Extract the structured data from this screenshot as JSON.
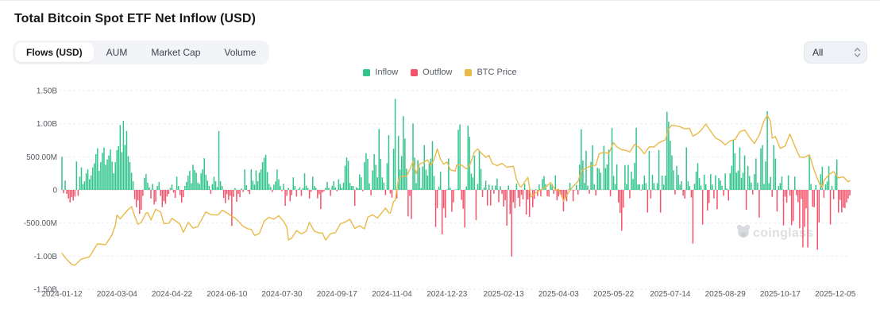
{
  "header": {
    "title": "Total Bitcoin Spot ETF Net Inflow (USD)"
  },
  "tabs": {
    "active": "Flows (USD)",
    "items": [
      {
        "label": "Flows (USD)"
      },
      {
        "label": "AUM"
      },
      {
        "label": "Market Cap"
      },
      {
        "label": "Volume"
      }
    ]
  },
  "range_select": {
    "value": "All"
  },
  "legend": {
    "items": [
      {
        "label": "Inflow",
        "color": "#31c48d"
      },
      {
        "label": "Outflow",
        "color": "#f4536a"
      },
      {
        "label": "BTC Price",
        "color": "#e9ba4a"
      }
    ]
  },
  "watermark": {
    "text": "coinglass"
  },
  "chart_data": {
    "type": "combo",
    "title": "Total Bitcoin Spot ETF Net Inflow (USD)",
    "grid": "horizontal-dashed",
    "legend_position": "top-center",
    "y_axis": {
      "unit": "USD",
      "range_musd": [
        -1500,
        1500
      ],
      "ticks": [
        {
          "label": "1.50B",
          "value_musd": 1500
        },
        {
          "label": "1.00B",
          "value_musd": 1000
        },
        {
          "label": "500.00M",
          "value_musd": 500
        },
        {
          "label": "0",
          "value_musd": 0
        },
        {
          "label": "-500.00M",
          "value_musd": -500
        },
        {
          "label": "-1.00B",
          "value_musd": -1000
        },
        {
          "label": "-1.50B",
          "value_musd": -1500
        }
      ]
    },
    "x_axis": {
      "ticks": [
        {
          "label": "2024-01-12",
          "day": 0
        },
        {
          "label": "2024-03-04",
          "day": 34
        },
        {
          "label": "2024-04-22",
          "day": 68
        },
        {
          "label": "2024-06-10",
          "day": 102
        },
        {
          "label": "2024-07-30",
          "day": 136
        },
        {
          "label": "2024-09-17",
          "day": 170
        },
        {
          "label": "2024-11-04",
          "day": 204
        },
        {
          "label": "2024-12-23",
          "day": 238
        },
        {
          "label": "2025-02-13",
          "day": 273
        },
        {
          "label": "2025-04-03",
          "day": 307
        },
        {
          "label": "2025-05-22",
          "day": 341
        },
        {
          "label": "2025-07-14",
          "day": 376
        },
        {
          "label": "2025-08-29",
          "day": 410
        },
        {
          "label": "2025-10-17",
          "day": 444
        },
        {
          "label": "2025-12-05",
          "day": 478
        }
      ]
    },
    "colors": {
      "inflow": "#31c48d",
      "outflow": "#f4536a",
      "btc_price": "#e9ba4a"
    },
    "bar_series": {
      "name": "Daily Net Flow (Inflow/Outflow)",
      "unit": "USD millions",
      "start_date": "2024-01-12",
      "frequency": "trading_days",
      "values_musd": [
        500,
        -49,
        140,
        -60,
        -130,
        -190,
        -110,
        -160,
        -100,
        430,
        -90,
        200,
        340,
        90,
        130,
        250,
        310,
        160,
        220,
        340,
        400,
        540,
        630,
        290,
        420,
        560,
        640,
        380,
        460,
        520,
        610,
        430,
        250,
        420,
        600,
        660,
        980,
        570,
        1045,
        680,
        890,
        510,
        420,
        260,
        130,
        -140,
        -260,
        -160,
        -360,
        -300,
        -90,
        180,
        240,
        110,
        40,
        -130,
        90,
        -220,
        -180,
        60,
        120,
        -90,
        -260,
        -170,
        -210,
        -100,
        -60,
        30,
        80,
        -40,
        -120,
        200,
        60,
        -80,
        -190,
        -110,
        60,
        120,
        217,
        290,
        100,
        380,
        300,
        260,
        110,
        90,
        250,
        310,
        480,
        230,
        140,
        60,
        -60,
        90,
        200,
        130,
        45,
        890,
        130,
        60,
        -120,
        -200,
        -65,
        -150,
        -90,
        -545,
        -105,
        30,
        -180,
        -60,
        -110,
        20,
        -30,
        310,
        70,
        -20,
        -65,
        310,
        140,
        80,
        295,
        130,
        260,
        310,
        420,
        485,
        530,
        270,
        90,
        44,
        -30,
        80,
        130,
        310,
        160,
        60,
        -20,
        90,
        -240,
        -90,
        30,
        -170,
        -80,
        190,
        60,
        -100,
        10,
        40,
        -90,
        30,
        250,
        65,
        30,
        -130,
        -30,
        200,
        60,
        30,
        -127,
        -65,
        -290,
        -40,
        -20,
        30,
        120,
        30,
        -90,
        60,
        130,
        40,
        -20,
        160,
        90,
        30,
        110,
        365,
        490,
        440,
        105,
        60,
        61,
        -240,
        39,
        25,
        235,
        190,
        -20,
        420,
        555,
        470,
        99,
        -80,
        294,
        540,
        380,
        190,
        920,
        470,
        190,
        110,
        -79,
        402,
        827,
        -55,
        -116,
        622,
        1374,
        -128,
        817,
        310,
        510,
        1114,
        775,
        320,
        -400,
        -91,
        -438,
        1005,
        490,
        103,
        450,
        340,
        30,
        354,
        676,
        308,
        216,
        398,
        475,
        737,
        211,
        -560,
        -277,
        51,
        275,
        -671,
        -277,
        -420,
        8,
        475,
        31,
        -330,
        -188,
        5,
        5,
        908,
        987,
        -150,
        -284,
        -568,
        53,
        969,
        802,
        249,
        188,
        518,
        -457,
        92,
        588,
        318,
        -110,
        37,
        140,
        -235,
        80,
        -235,
        67,
        -56,
        66,
        171,
        -186,
        56,
        -61,
        -251,
        -157,
        -540,
        66,
        -364,
        -1005,
        -188,
        -276,
        94,
        -120,
        -250,
        -74,
        -143,
        94,
        -372,
        -145,
        -409,
        5,
        -263,
        -135,
        13,
        -93,
        83,
        -97,
        165,
        209,
        89,
        -93,
        -102,
        84,
        89,
        -60,
        218,
        -158,
        -100,
        -65,
        -110,
        -324,
        -127,
        -172,
        3,
        107,
        1,
        -170,
        -6,
        76,
        -70,
        381,
        917,
        442,
        108,
        591,
        64,
        -57,
        425,
        675,
        88,
        -85,
        334,
        321,
        260,
        5,
        667,
        329,
        384,
        608,
        -96,
        935,
        211,
        87,
        385,
        -190,
        -346,
        -616,
        -268,
        375,
        87,
        378,
        -128,
        274,
        165,
        408,
        939,
        81,
        86,
        -9,
        83,
        216,
        102,
        -342,
        588,
        -130,
        229,
        102,
        7,
        102,
        602,
        -342,
        217,
        80,
        215,
        1180,
        1030,
        742,
        523,
        297,
        -68,
        363,
        226,
        80,
        131,
        -86,
        -131,
        642,
        130,
        57,
        -115,
        -812,
        91,
        277,
        404,
        178,
        65,
        -523,
        230,
        86,
        -311,
        -197,
        240,
        81,
        -127,
        219,
        -291,
        179,
        143,
        64,
        -87,
        250,
        23,
        -160,
        250,
        364,
        757,
        553,
        260,
        292,
        643,
        183,
        260,
        522,
        -300,
        363,
        211,
        111,
        -70,
        241,
        475,
        109,
        -418,
        627,
        676,
        91,
        429,
        1190,
        102,
        197,
        -104,
        675,
        475,
        -327,
        60,
        103,
        202,
        -536,
        -101,
        -191,
        220,
        -88,
        -532,
        -470,
        202,
        -79,
        -187,
        -578,
        -137,
        -867,
        -558,
        -278,
        -870,
        524,
        90,
        -255,
        -262,
        75,
        -903,
        -492,
        238,
        351,
        -118,
        83,
        129,
        358,
        -523,
        61,
        -140,
        224,
        460,
        -342,
        -150,
        -339,
        -267,
        -274,
        -190,
        -130,
        -85
      ]
    },
    "line_series": {
      "name": "BTC Price",
      "unit": "USD",
      "axis_range_usd": [
        25800,
        139500
      ],
      "points_day_price": [
        [
          0,
          46300
        ],
        [
          3,
          42800
        ],
        [
          6,
          40000
        ],
        [
          8,
          39600
        ],
        [
          12,
          43100
        ],
        [
          17,
          44300
        ],
        [
          22,
          51800
        ],
        [
          27,
          51300
        ],
        [
          31,
          57000
        ],
        [
          33,
          62400
        ],
        [
          34,
          68300
        ],
        [
          36,
          66100
        ],
        [
          38,
          68300
        ],
        [
          41,
          71500
        ],
        [
          43,
          73100
        ],
        [
          45,
          67600
        ],
        [
          47,
          63000
        ],
        [
          49,
          64100
        ],
        [
          52,
          69400
        ],
        [
          53,
          69700
        ],
        [
          55,
          65400
        ],
        [
          58,
          71600
        ],
        [
          61,
          70000
        ],
        [
          63,
          63400
        ],
        [
          66,
          63500
        ],
        [
          68,
          66400
        ],
        [
          73,
          63100
        ],
        [
          75,
          58300
        ],
        [
          78,
          64100
        ],
        [
          81,
          60800
        ],
        [
          84,
          61600
        ],
        [
          86,
          65200
        ],
        [
          89,
          70100
        ],
        [
          92,
          68500
        ],
        [
          96,
          68300
        ],
        [
          97,
          68800
        ],
        [
          99,
          71100
        ],
        [
          102,
          69500
        ],
        [
          104,
          68200
        ],
        [
          107,
          66500
        ],
        [
          109,
          64800
        ],
        [
          112,
          61800
        ],
        [
          115,
          60300
        ],
        [
          117,
          60200
        ],
        [
          119,
          56600
        ],
        [
          122,
          57700
        ],
        [
          125,
          64800
        ],
        [
          128,
          67000
        ],
        [
          131,
          65900
        ],
        [
          134,
          67900
        ],
        [
          137,
          64600
        ],
        [
          139,
          61500
        ],
        [
          140,
          54000
        ],
        [
          142,
          55000
        ],
        [
          145,
          59400
        ],
        [
          148,
          57500
        ],
        [
          151,
          59000
        ],
        [
          153,
          64100
        ],
        [
          156,
          59000
        ],
        [
          159,
          58000
        ],
        [
          161,
          58000
        ],
        [
          163,
          53900
        ],
        [
          166,
          57600
        ],
        [
          169,
          58200
        ],
        [
          172,
          63200
        ],
        [
          175,
          64300
        ],
        [
          178,
          65800
        ],
        [
          181,
          60600
        ],
        [
          184,
          62200
        ],
        [
          187,
          60300
        ],
        [
          189,
          67000
        ],
        [
          192,
          68400
        ],
        [
          195,
          66600
        ],
        [
          198,
          69900
        ],
        [
          200,
          72300
        ],
        [
          202,
          69500
        ],
        [
          203,
          69400
        ],
        [
          205,
          76000
        ],
        [
          206,
          76700
        ],
        [
          208,
          88700
        ],
        [
          210,
          90400
        ],
        [
          213,
          90500
        ],
        [
          215,
          94300
        ],
        [
          217,
          99000
        ],
        [
          219,
          91900
        ],
        [
          221,
          97400
        ],
        [
          224,
          98700
        ],
        [
          226,
          99900
        ],
        [
          228,
          96600
        ],
        [
          230,
          100000
        ],
        [
          232,
          106100
        ],
        [
          234,
          100200
        ],
        [
          236,
          97400
        ],
        [
          238,
          98700
        ],
        [
          240,
          94200
        ],
        [
          243,
          93400
        ],
        [
          244,
          96900
        ],
        [
          247,
          96900
        ],
        [
          250,
          94700
        ],
        [
          252,
          96500
        ],
        [
          255,
          104400
        ],
        [
          257,
          106100
        ],
        [
          259,
          103900
        ],
        [
          262,
          101300
        ],
        [
          264,
          102400
        ],
        [
          266,
          97800
        ],
        [
          269,
          96500
        ],
        [
          272,
          97800
        ],
        [
          275,
          95600
        ],
        [
          279,
          96200
        ],
        [
          281,
          88600
        ],
        [
          283,
          84700
        ],
        [
          284,
          84300
        ],
        [
          286,
          87200
        ],
        [
          288,
          89900
        ],
        [
          290,
          78500
        ],
        [
          293,
          81100
        ],
        [
          296,
          82700
        ],
        [
          299,
          84100
        ],
        [
          302,
          86900
        ],
        [
          305,
          82500
        ],
        [
          307,
          83100
        ],
        [
          309,
          79200
        ],
        [
          310,
          76300
        ],
        [
          312,
          79600
        ],
        [
          315,
          83700
        ],
        [
          319,
          87500
        ],
        [
          321,
          93700
        ],
        [
          324,
          95000
        ],
        [
          327,
          96500
        ],
        [
          330,
          96800
        ],
        [
          332,
          103300
        ],
        [
          335,
          104200
        ],
        [
          338,
          103500
        ],
        [
          341,
          109700
        ],
        [
          343,
          107300
        ],
        [
          346,
          105600
        ],
        [
          348,
          105400
        ],
        [
          351,
          104400
        ],
        [
          354,
          108700
        ],
        [
          357,
          106800
        ],
        [
          360,
          103300
        ],
        [
          363,
          107300
        ],
        [
          366,
          107200
        ],
        [
          369,
          109600
        ],
        [
          373,
          111300
        ],
        [
          375,
          117600
        ],
        [
          377,
          119800
        ],
        [
          379,
          119400
        ],
        [
          382,
          118800
        ],
        [
          385,
          117600
        ],
        [
          388,
          117900
        ],
        [
          390,
          113400
        ],
        [
          393,
          115000
        ],
        [
          395,
          116700
        ],
        [
          398,
          120400
        ],
        [
          401,
          116300
        ],
        [
          404,
          112400
        ],
        [
          407,
          111000
        ],
        [
          410,
          108400
        ],
        [
          413,
          110700
        ],
        [
          416,
          111500
        ],
        [
          419,
          115900
        ],
        [
          422,
          117000
        ],
        [
          425,
          112800
        ],
        [
          428,
          109200
        ],
        [
          431,
          114000
        ],
        [
          434,
          122200
        ],
        [
          436,
          125300
        ],
        [
          438,
          121700
        ],
        [
          439,
          112200
        ],
        [
          441,
          113200
        ],
        [
          444,
          106400
        ],
        [
          447,
          107800
        ],
        [
          450,
          114600
        ],
        [
          453,
          107700
        ],
        [
          456,
          101500
        ],
        [
          459,
          101300
        ],
        [
          462,
          102800
        ],
        [
          465,
          93800
        ],
        [
          468,
          86600
        ],
        [
          470,
          83900
        ],
        [
          471,
          88000
        ],
        [
          474,
          91300
        ],
        [
          477,
          93200
        ],
        [
          480,
          89500
        ],
        [
          483,
          90100
        ],
        [
          486,
          87300
        ],
        [
          487,
          88000
        ]
      ]
    }
  }
}
